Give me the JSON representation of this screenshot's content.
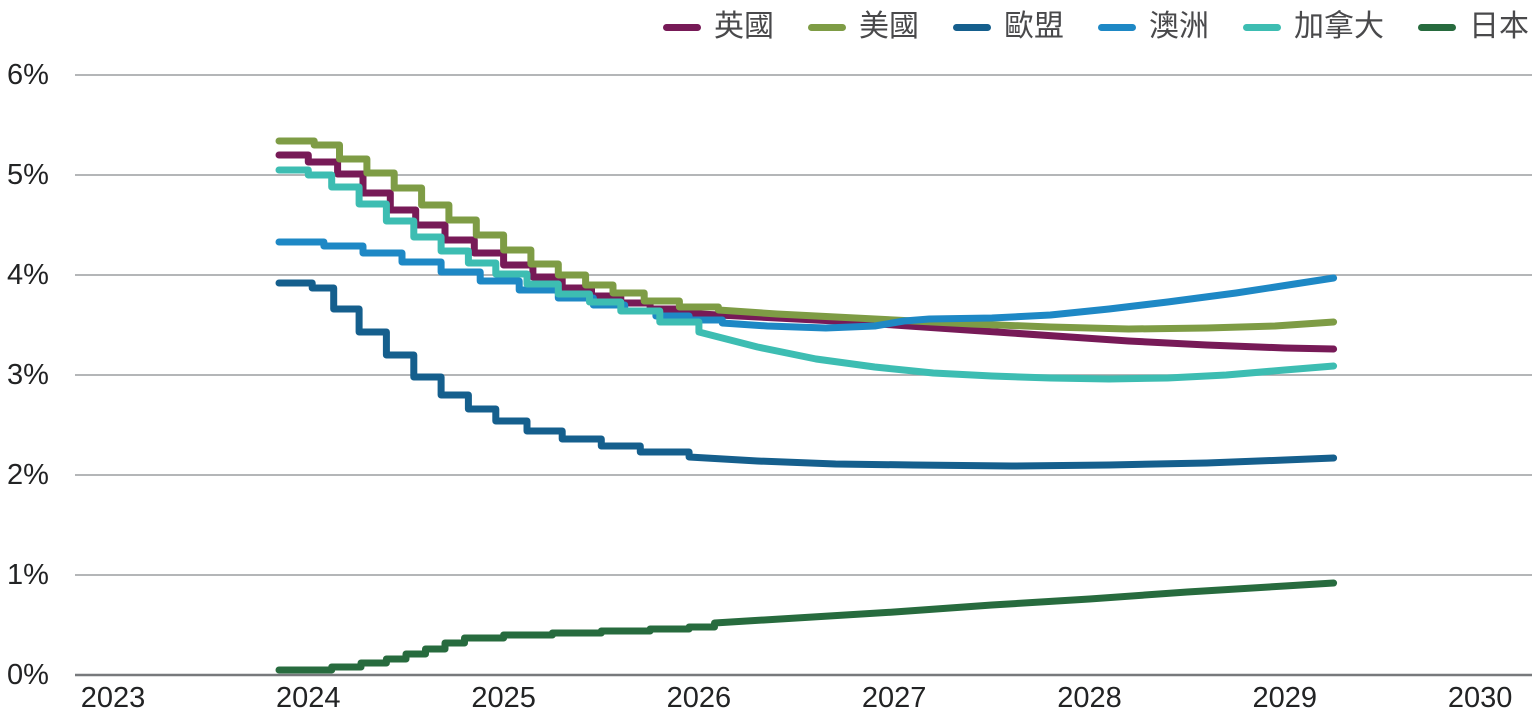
{
  "colors": {
    "background": "#ffffff",
    "gridline": "#9b9da0",
    "axis_line": "#77797c",
    "axis_text": "#222324",
    "legend_text": "#49494b"
  },
  "chart_data": {
    "type": "line",
    "unit": "%",
    "title": "",
    "xlabel": "",
    "ylabel": "",
    "x_range": [
      2023,
      2030
    ],
    "y_range": [
      0,
      6
    ],
    "grid": "horizontal",
    "legend_position": "top-right",
    "line_style": "step-down forward curves flattening into smooth paths",
    "x_axis": {
      "ticks": [
        {
          "value": 2023,
          "label": "2023"
        },
        {
          "value": 2024,
          "label": "2024"
        },
        {
          "value": 2025,
          "label": "2025"
        },
        {
          "value": 2026,
          "label": "2026"
        },
        {
          "value": 2027,
          "label": "2027"
        },
        {
          "value": 2028,
          "label": "2028"
        },
        {
          "value": 2029,
          "label": "2029"
        },
        {
          "value": 2030,
          "label": "2030"
        }
      ]
    },
    "y_axis": {
      "ticks": [
        {
          "value": 0,
          "label": "0%"
        },
        {
          "value": 1,
          "label": "1%"
        },
        {
          "value": 2,
          "label": "2%"
        },
        {
          "value": 3,
          "label": "3%"
        },
        {
          "value": 4,
          "label": "4%"
        },
        {
          "value": 5,
          "label": "5%"
        },
        {
          "value": 6,
          "label": "6%"
        }
      ]
    },
    "series": [
      {
        "id": "uk",
        "name": "英國",
        "color": "#771a57",
        "step_until": 2026.05,
        "points": [
          [
            2023.85,
            5.2
          ],
          [
            2024.0,
            5.13
          ],
          [
            2024.15,
            5.01
          ],
          [
            2024.28,
            4.82
          ],
          [
            2024.42,
            4.65
          ],
          [
            2024.55,
            4.5
          ],
          [
            2024.7,
            4.35
          ],
          [
            2024.85,
            4.22
          ],
          [
            2025.0,
            4.1
          ],
          [
            2025.15,
            3.98
          ],
          [
            2025.3,
            3.87
          ],
          [
            2025.45,
            3.79
          ],
          [
            2025.6,
            3.72
          ],
          [
            2025.75,
            3.66
          ],
          [
            2025.92,
            3.62
          ],
          [
            2026.1,
            3.6
          ],
          [
            2026.4,
            3.57
          ],
          [
            2026.7,
            3.54
          ],
          [
            2027.0,
            3.5
          ],
          [
            2027.3,
            3.46
          ],
          [
            2027.6,
            3.42
          ],
          [
            2027.9,
            3.38
          ],
          [
            2028.2,
            3.34
          ],
          [
            2028.6,
            3.3
          ],
          [
            2029.0,
            3.27
          ],
          [
            2029.25,
            3.26
          ]
        ]
      },
      {
        "id": "us",
        "name": "美國",
        "color": "#7e9c45",
        "step_until": 2026.1,
        "points": [
          [
            2023.85,
            5.34
          ],
          [
            2024.03,
            5.3
          ],
          [
            2024.16,
            5.16
          ],
          [
            2024.3,
            5.02
          ],
          [
            2024.44,
            4.87
          ],
          [
            2024.58,
            4.7
          ],
          [
            2024.72,
            4.55
          ],
          [
            2024.86,
            4.4
          ],
          [
            2025.0,
            4.25
          ],
          [
            2025.14,
            4.11
          ],
          [
            2025.28,
            4.0
          ],
          [
            2025.42,
            3.9
          ],
          [
            2025.56,
            3.82
          ],
          [
            2025.72,
            3.74
          ],
          [
            2025.9,
            3.68
          ],
          [
            2026.1,
            3.65
          ],
          [
            2026.4,
            3.61
          ],
          [
            2026.7,
            3.58
          ],
          [
            2027.0,
            3.55
          ],
          [
            2027.4,
            3.51
          ],
          [
            2027.8,
            3.48
          ],
          [
            2028.2,
            3.46
          ],
          [
            2028.6,
            3.47
          ],
          [
            2028.95,
            3.49
          ],
          [
            2029.25,
            3.53
          ]
        ]
      },
      {
        "id": "eu",
        "name": "歐盟",
        "color": "#155f8d",
        "step_until": 2026.0,
        "points": [
          [
            2023.85,
            3.92
          ],
          [
            2024.02,
            3.87
          ],
          [
            2024.13,
            3.66
          ],
          [
            2024.26,
            3.43
          ],
          [
            2024.4,
            3.2
          ],
          [
            2024.54,
            2.98
          ],
          [
            2024.68,
            2.8
          ],
          [
            2024.82,
            2.66
          ],
          [
            2024.96,
            2.54
          ],
          [
            2025.12,
            2.44
          ],
          [
            2025.3,
            2.36
          ],
          [
            2025.5,
            2.29
          ],
          [
            2025.7,
            2.23
          ],
          [
            2025.95,
            2.18
          ],
          [
            2026.3,
            2.14
          ],
          [
            2026.7,
            2.11
          ],
          [
            2027.1,
            2.1
          ],
          [
            2027.6,
            2.09
          ],
          [
            2028.1,
            2.1
          ],
          [
            2028.6,
            2.12
          ],
          [
            2029.0,
            2.15
          ],
          [
            2029.25,
            2.17
          ]
        ]
      },
      {
        "id": "au",
        "name": "澳洲",
        "color": "#1e88c5",
        "step_until": 2026.3,
        "points": [
          [
            2023.85,
            4.33
          ],
          [
            2024.08,
            4.29
          ],
          [
            2024.28,
            4.22
          ],
          [
            2024.48,
            4.13
          ],
          [
            2024.68,
            4.03
          ],
          [
            2024.88,
            3.94
          ],
          [
            2025.08,
            3.85
          ],
          [
            2025.28,
            3.77
          ],
          [
            2025.46,
            3.7
          ],
          [
            2025.62,
            3.64
          ],
          [
            2025.78,
            3.59
          ],
          [
            2025.95,
            3.55
          ],
          [
            2026.12,
            3.52
          ],
          [
            2026.35,
            3.49
          ],
          [
            2026.65,
            3.47
          ],
          [
            2026.9,
            3.49
          ],
          [
            2027.05,
            3.54
          ],
          [
            2027.18,
            3.56
          ],
          [
            2027.5,
            3.57
          ],
          [
            2027.8,
            3.6
          ],
          [
            2028.1,
            3.66
          ],
          [
            2028.4,
            3.73
          ],
          [
            2028.75,
            3.82
          ],
          [
            2029.05,
            3.91
          ],
          [
            2029.25,
            3.97
          ]
        ]
      },
      {
        "id": "ca",
        "name": "加拿大",
        "color": "#3dbdb2",
        "step_until": 2026.0,
        "points": [
          [
            2023.85,
            5.05
          ],
          [
            2024.0,
            5.0
          ],
          [
            2024.12,
            4.88
          ],
          [
            2024.26,
            4.71
          ],
          [
            2024.4,
            4.54
          ],
          [
            2024.54,
            4.38
          ],
          [
            2024.68,
            4.24
          ],
          [
            2024.82,
            4.12
          ],
          [
            2024.96,
            4.01
          ],
          [
            2025.12,
            3.91
          ],
          [
            2025.28,
            3.81
          ],
          [
            2025.44,
            3.73
          ],
          [
            2025.6,
            3.64
          ],
          [
            2025.8,
            3.53
          ],
          [
            2026.0,
            3.43
          ],
          [
            2026.3,
            3.28
          ],
          [
            2026.6,
            3.16
          ],
          [
            2026.9,
            3.08
          ],
          [
            2027.2,
            3.02
          ],
          [
            2027.5,
            2.99
          ],
          [
            2027.8,
            2.97
          ],
          [
            2028.1,
            2.96
          ],
          [
            2028.4,
            2.97
          ],
          [
            2028.7,
            3.0
          ],
          [
            2029.0,
            3.05
          ],
          [
            2029.25,
            3.09
          ]
        ]
      },
      {
        "id": "jp",
        "name": "日本",
        "color": "#276b3e",
        "step_until": 2026.1,
        "points": [
          [
            2023.85,
            0.05
          ],
          [
            2024.12,
            0.08
          ],
          [
            2024.27,
            0.12
          ],
          [
            2024.4,
            0.16
          ],
          [
            2024.5,
            0.21
          ],
          [
            2024.6,
            0.26
          ],
          [
            2024.7,
            0.32
          ],
          [
            2024.8,
            0.37
          ],
          [
            2025.0,
            0.4
          ],
          [
            2025.25,
            0.42
          ],
          [
            2025.5,
            0.44
          ],
          [
            2025.75,
            0.46
          ],
          [
            2025.95,
            0.48
          ],
          [
            2026.08,
            0.52
          ],
          [
            2026.5,
            0.57
          ],
          [
            2027.0,
            0.63
          ],
          [
            2027.5,
            0.7
          ],
          [
            2028.0,
            0.76
          ],
          [
            2028.5,
            0.83
          ],
          [
            2029.0,
            0.89
          ],
          [
            2029.25,
            0.92
          ]
        ]
      }
    ]
  }
}
